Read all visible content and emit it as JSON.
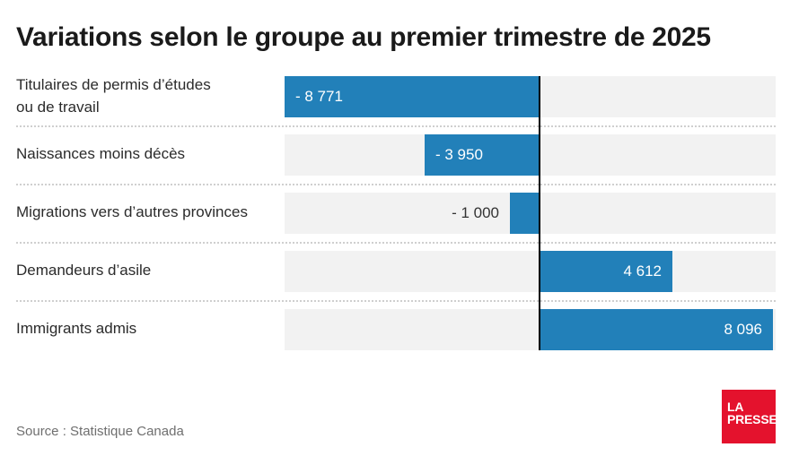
{
  "title": "Variations selon le groupe au premier trimestre de 2025",
  "source_label": "Source : Statistique Canada",
  "logo": {
    "line1": "LA",
    "line2": "PRESSE",
    "background": "#e4122d",
    "text_color": "#ffffff"
  },
  "colors": {
    "bar": "#2280b9",
    "track": "#f2f2f2",
    "axis": "#000000",
    "value_inside": "#ffffff",
    "value_outside": "#333333",
    "title_text": "#1a1a1a",
    "label_text": "#2b2b2b",
    "source_text": "#6f6f6f"
  },
  "chart_data": {
    "type": "bar",
    "orientation": "horizontal",
    "title": "Variations selon le groupe au premier trimestre de 2025",
    "categories": [
      "Titulaires de permis d’études\nou de travail",
      "Naissances moins décès",
      "Migrations vers d’autres provinces",
      "Demandeurs d’asile",
      "Immigrants admis"
    ],
    "values": [
      -8771,
      -3950,
      -1000,
      4612,
      8096
    ],
    "value_labels": [
      "- 8 771",
      "- 3 950",
      "- 1 000",
      "4 612",
      "8 096"
    ],
    "xlim": [
      -8771,
      8096
    ],
    "zero_axis_line": true,
    "grid": false,
    "legend": false,
    "source": "Statistique Canada"
  }
}
